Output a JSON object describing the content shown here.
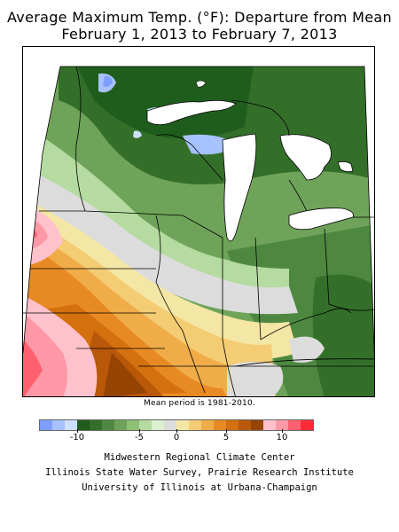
{
  "title_line1": "Average Maximum Temp. (°F): Departure from Mean",
  "title_line2": "February 1, 2013 to February 7, 2013",
  "mean_period": "Mean period is 1981-2010.",
  "legend": {
    "colors": [
      "#7f9fff",
      "#a7c2ff",
      "#cde0ff",
      "#1f5d1c",
      "#346f2a",
      "#4e8840",
      "#6fa35a",
      "#8dbf74",
      "#b5dba0",
      "#dcf0cf",
      "#dcdcdc",
      "#f4e6a4",
      "#f4cc74",
      "#f0ac48",
      "#e88a24",
      "#d4700e",
      "#b85808",
      "#964404",
      "#ffc2cc",
      "#ff98a6",
      "#ff6070",
      "#ff2a36"
    ],
    "tick_labels": [
      "-10",
      "-5",
      "0",
      "5",
      "10"
    ]
  },
  "credits": [
    "Midwestern Regional Climate Center",
    "Illinois State Water Survey, Prairie Research Institute",
    "University of Illinois at Urbana-Champaign"
  ]
}
